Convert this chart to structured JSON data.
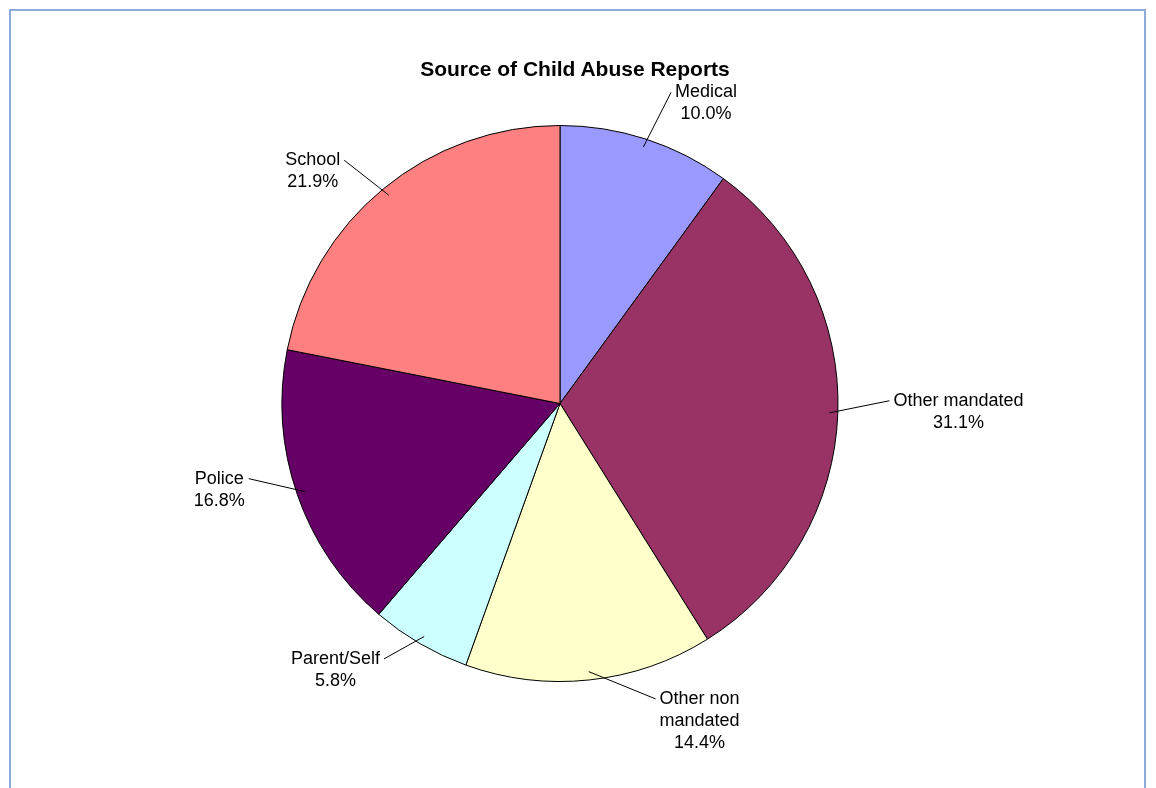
{
  "chart_data": {
    "type": "pie",
    "title": "Source of Child Abuse Reports",
    "categories": [
      "Medical",
      "Other mandated",
      "Other non mandated",
      "Parent/Self",
      "Police",
      "School"
    ],
    "values": [
      10.0,
      31.1,
      14.4,
      5.8,
      16.8,
      21.9
    ],
    "colors": [
      "#9999ff",
      "#993366",
      "#ffffcc",
      "#ccffff",
      "#660066",
      "#ff8080"
    ],
    "value_labels": [
      "10.0%",
      "31.1%",
      "14.4%",
      "5.8%",
      "16.8%",
      "21.9%"
    ],
    "legend": false
  }
}
